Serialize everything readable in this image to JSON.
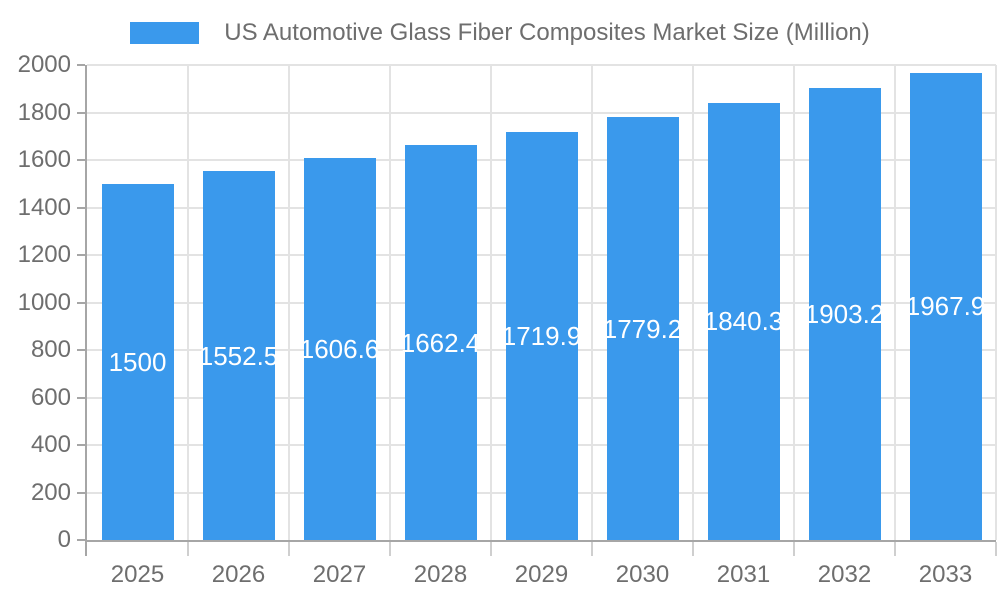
{
  "chart_data": {
    "type": "bar",
    "title": "US Automotive Glass Fiber Composites Market Size (Million)",
    "legend": {
      "position": "top",
      "label": "US Automotive Glass Fiber Composites Market Size (Million)"
    },
    "categories": [
      "2025",
      "2026",
      "2027",
      "2028",
      "2029",
      "2030",
      "2031",
      "2032",
      "2033"
    ],
    "values": [
      1500,
      1552.5,
      1606.6,
      1662.4,
      1719.9,
      1779.2,
      1840.3,
      1903.2,
      1967.9
    ],
    "bar_labels": [
      "1500",
      "1552.5",
      "1606.6",
      "1662.4",
      "1719.9",
      "1779.2",
      "1840.3",
      "1903.2",
      "1967.9"
    ],
    "xlabel": "",
    "ylabel": "",
    "ylim": [
      0,
      2000
    ],
    "ytick_step": 200,
    "ytick_labels": [
      "0",
      "200",
      "400",
      "600",
      "800",
      "1000",
      "1200",
      "1400",
      "1600",
      "1800",
      "2000"
    ],
    "grid": true,
    "colors": {
      "bar": "#3A99EC",
      "bar_label": "#FFFFFF",
      "grid_line": "#E3E3E3",
      "axis_line": "#A6A6A6",
      "minor_tick": "#CFCFCF",
      "tick_label": "#6E6E6E",
      "background": "#FFFFFF"
    }
  }
}
